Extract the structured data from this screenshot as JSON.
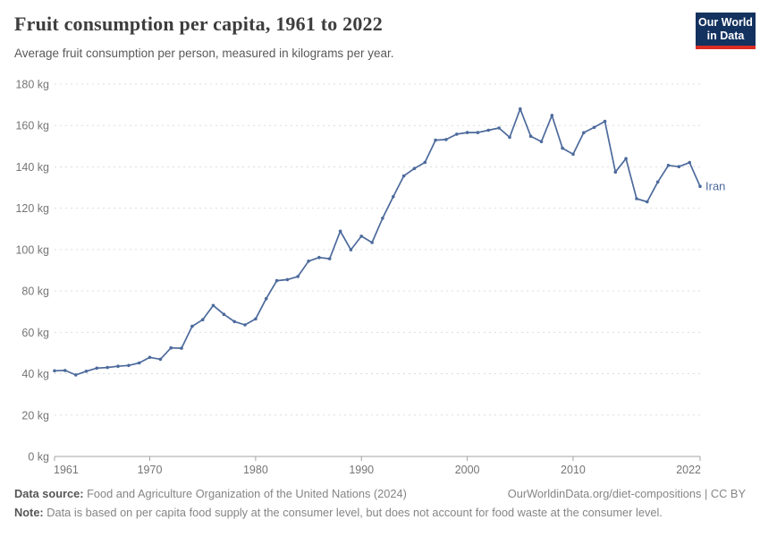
{
  "header": {
    "title": "Fruit consumption per capita, 1961 to 2022",
    "subtitle": "Average fruit consumption per person, measured in kilograms per year."
  },
  "logo": {
    "line1": "Our World",
    "line2": "in Data"
  },
  "chart_data": {
    "type": "line",
    "title": "Fruit consumption per capita, 1961 to 2022",
    "subtitle": "Average fruit consumption per person, measured in kilograms per year.",
    "xlabel": "",
    "ylabel": "",
    "ytick_suffix": " kg",
    "xlim": [
      1961,
      2022
    ],
    "ylim": [
      0,
      180
    ],
    "yticks": [
      0,
      20,
      40,
      60,
      80,
      100,
      120,
      140,
      160,
      180
    ],
    "xticks": [
      1961,
      1970,
      1980,
      1990,
      2000,
      2010,
      2022
    ],
    "grid": "horizontal-dashed",
    "legend_position": "end-of-line-label",
    "series": [
      {
        "name": "Iran",
        "color": "#4C6A9C",
        "x": [
          1961,
          1962,
          1963,
          1964,
          1965,
          1966,
          1967,
          1968,
          1969,
          1970,
          1971,
          1972,
          1973,
          1974,
          1975,
          1976,
          1977,
          1978,
          1979,
          1980,
          1981,
          1982,
          1983,
          1984,
          1985,
          1986,
          1987,
          1988,
          1989,
          1990,
          1991,
          1992,
          1993,
          1994,
          1995,
          1996,
          1997,
          1998,
          1999,
          2000,
          2001,
          2002,
          2003,
          2004,
          2005,
          2006,
          2007,
          2008,
          2009,
          2010,
          2011,
          2012,
          2013,
          2014,
          2015,
          2016,
          2017,
          2018,
          2019,
          2020,
          2021,
          2022
        ],
        "values": [
          41.4,
          41.6,
          39.4,
          41.2,
          42.7,
          43,
          43.6,
          44,
          45.2,
          47.9,
          47,
          52.5,
          52.3,
          62.9,
          66.1,
          73,
          68.7,
          65.2,
          63.6,
          66.5,
          76.3,
          85,
          85.5,
          87,
          94.4,
          96.2,
          95.6,
          108.9,
          99.9,
          106.5,
          103.4,
          115.2,
          125.6,
          135.6,
          139.2,
          142.2,
          152.9,
          153.2,
          155.8,
          156.6,
          156.6,
          157.7,
          158.8,
          154.3,
          168,
          154.8,
          152.2,
          164.9,
          149,
          146.1,
          156.5,
          159.1,
          162,
          137.5,
          144,
          124.6,
          123.1,
          132.7,
          140.7,
          140.1,
          142.1,
          130.6
        ]
      }
    ]
  },
  "colors": {
    "line": "#4C6A9C",
    "grid": "#dcdcdc",
    "axis": "#a3a3a3",
    "tick_label": "#757575",
    "logo_bg": "#14325F",
    "logo_red": "#DC2D23"
  },
  "footer": {
    "datasource_label": "Data source:",
    "datasource": " Food and Agriculture Organization of the United Nations (2024)",
    "link": "OurWorldinData.org/diet-compositions | CC BY",
    "note_label": "Note:",
    "note": " Data is based on per capita food supply at the consumer level, but does not account for food waste at the consumer level."
  }
}
